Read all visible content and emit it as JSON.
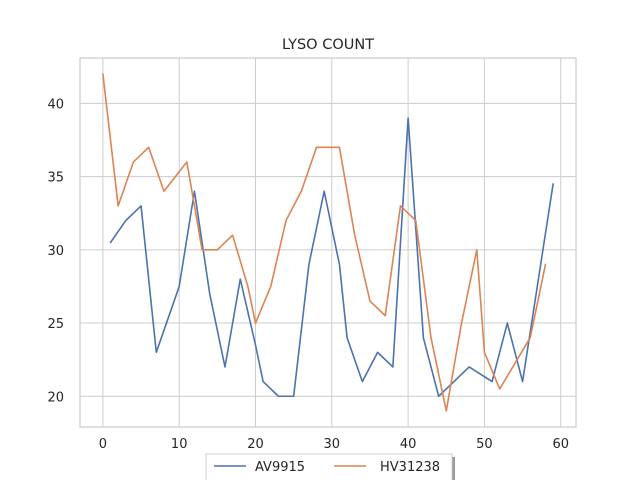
{
  "chart_data": {
    "type": "line",
    "title": "LYSO COUNT",
    "xlabel": "",
    "ylabel": "",
    "xlim": [
      -3,
      62
    ],
    "ylim": [
      17.9,
      43.1
    ],
    "xticks": [
      0,
      10,
      20,
      30,
      40,
      50,
      60
    ],
    "yticks": [
      20,
      25,
      30,
      35,
      40
    ],
    "grid": true,
    "legend_placement": "bottom-center",
    "series": [
      {
        "name": "AV9915",
        "color": "#4c72b0",
        "points": [
          [
            1,
            30.5
          ],
          [
            3,
            32
          ],
          [
            5,
            33
          ],
          [
            7,
            23
          ],
          [
            10,
            27.5
          ],
          [
            12,
            34
          ],
          [
            14,
            27
          ],
          [
            16,
            22
          ],
          [
            18,
            28
          ],
          [
            20,
            23.5
          ],
          [
            21,
            21
          ],
          [
            23,
            20
          ],
          [
            25,
            20
          ],
          [
            27,
            29
          ],
          [
            29,
            34
          ],
          [
            31,
            29
          ],
          [
            32,
            24
          ],
          [
            34,
            21
          ],
          [
            36,
            23
          ],
          [
            38,
            22
          ],
          [
            40,
            39
          ],
          [
            42,
            24
          ],
          [
            44,
            20
          ],
          [
            48,
            22
          ],
          [
            51,
            21
          ],
          [
            53,
            25
          ],
          [
            55,
            21
          ],
          [
            59,
            34.5
          ]
        ]
      },
      {
        "name": "HV31238",
        "color": "#dd8452",
        "points": [
          [
            0,
            42
          ],
          [
            2,
            33
          ],
          [
            4,
            36
          ],
          [
            6,
            37
          ],
          [
            8,
            34
          ],
          [
            11,
            36
          ],
          [
            13,
            30
          ],
          [
            15,
            30
          ],
          [
            17,
            31
          ],
          [
            19,
            27.5
          ],
          [
            20,
            25
          ],
          [
            22,
            27.5
          ],
          [
            24,
            32
          ],
          [
            26,
            34
          ],
          [
            28,
            37
          ],
          [
            30,
            37
          ],
          [
            31,
            37
          ],
          [
            33,
            31
          ],
          [
            35,
            26.5
          ],
          [
            37,
            25.5
          ],
          [
            39,
            33
          ],
          [
            41,
            32
          ],
          [
            43,
            24
          ],
          [
            45,
            19
          ],
          [
            47,
            25
          ],
          [
            49,
            30
          ],
          [
            50,
            23
          ],
          [
            52,
            20.5
          ],
          [
            56,
            24
          ],
          [
            58,
            29
          ]
        ]
      }
    ]
  }
}
